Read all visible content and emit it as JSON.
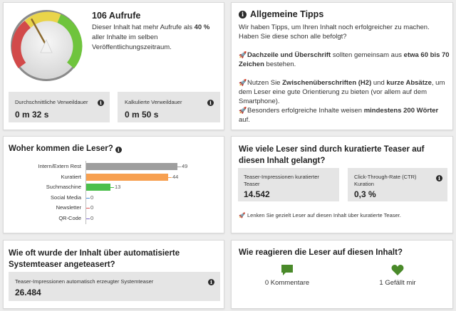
{
  "aufrufe": {
    "title": "106 Aufrufe",
    "desc_part1": "Dieser Inhalt hat mehr Aufrufe als ",
    "desc_bold": "40 %",
    "desc_part2": " aller Inhalte im selben Veröffentlichungszeitraum.",
    "gauge_percent": 40,
    "avg_label": "Durchschnittliche Verweildauer",
    "avg_value": "0 m 32 s",
    "calc_label": "Kalkulierte Verweildauer",
    "calc_value": "0 m 50 s"
  },
  "tipps": {
    "title": "Allgemeine Tipps",
    "intro": "Wir haben Tipps, um Ihren Inhalt noch erfolgreicher zu machen. Haben Sie diese schon alle befolgt?",
    "tip1_b1": "Dachzeile und Überschrift",
    "tip1_t1": " sollten gemeinsam aus ",
    "tip1_b2": "etwa 60 bis 70 Zeichen",
    "tip1_t2": " bestehen.",
    "tip2_t1": "Nutzen Sie ",
    "tip2_b1": "Zwischenüberschriften (H2)",
    "tip2_t2": " und ",
    "tip2_b2": "kurze Absätze",
    "tip2_t3": ", um dem Leser eine gute Orientierung zu bieten (vor allem auf dem Smartphone).",
    "tip3_t1": "Besonders erfolgreiche Inhalte weisen ",
    "tip3_b1": "mindestens 200 Wörter",
    "tip3_t2": " auf."
  },
  "herkunft": {
    "title": "Woher kommen die Leser?"
  },
  "chart_data": {
    "type": "bar",
    "orientation": "horizontal",
    "title": "Woher kommen die Leser?",
    "categories": [
      "Intern/Extern Rest",
      "Kuratiert",
      "Suchmaschine",
      "Social Media",
      "Newsletter",
      "QR-Code"
    ],
    "values": [
      49,
      44,
      13,
      0,
      0,
      0
    ],
    "value_labels": [
      "49",
      "44",
      "13",
      "0",
      "0",
      "0"
    ],
    "colors": [
      "#9e9e9e",
      "#f7a050",
      "#4bbf4b",
      "#4a90d9",
      "#e05555",
      "#7b68c8"
    ],
    "xlim": [
      0,
      49
    ]
  },
  "kuratiert": {
    "title": "Wie viele Leser sind durch kuratierte Teaser auf diesen Inhalt gelangt?",
    "imp_label": "Teaser-Impressionen kuratierter Teaser",
    "imp_value": "14.542",
    "ctr_label": "Click-Through-Rate (CTR) Kuration",
    "ctr_value": "0,3 %",
    "hint": "Lenken Sie gezielt Leser auf diesen Inhalt über kuratierte Teaser."
  },
  "systemteaser": {
    "title": "Wie oft wurde der Inhalt über automatisierte Systemteaser angeteasert?",
    "imp_label": "Teaser-Impressionen automatisch erzeugter Systemteaser",
    "imp_value": "26.484"
  },
  "reaktionen": {
    "title": "Wie reagieren die Leser auf diesen Inhalt?",
    "comments": "0 Kommentare",
    "likes": "1 Gefällt mir"
  },
  "icons": {
    "info": "i",
    "rocket": "🚀"
  },
  "colors": {
    "green": "#4a8a2a",
    "gauge_red": "#d24a4a",
    "gauge_yellow": "#e9d44a",
    "gauge_green": "#6fc43d"
  }
}
